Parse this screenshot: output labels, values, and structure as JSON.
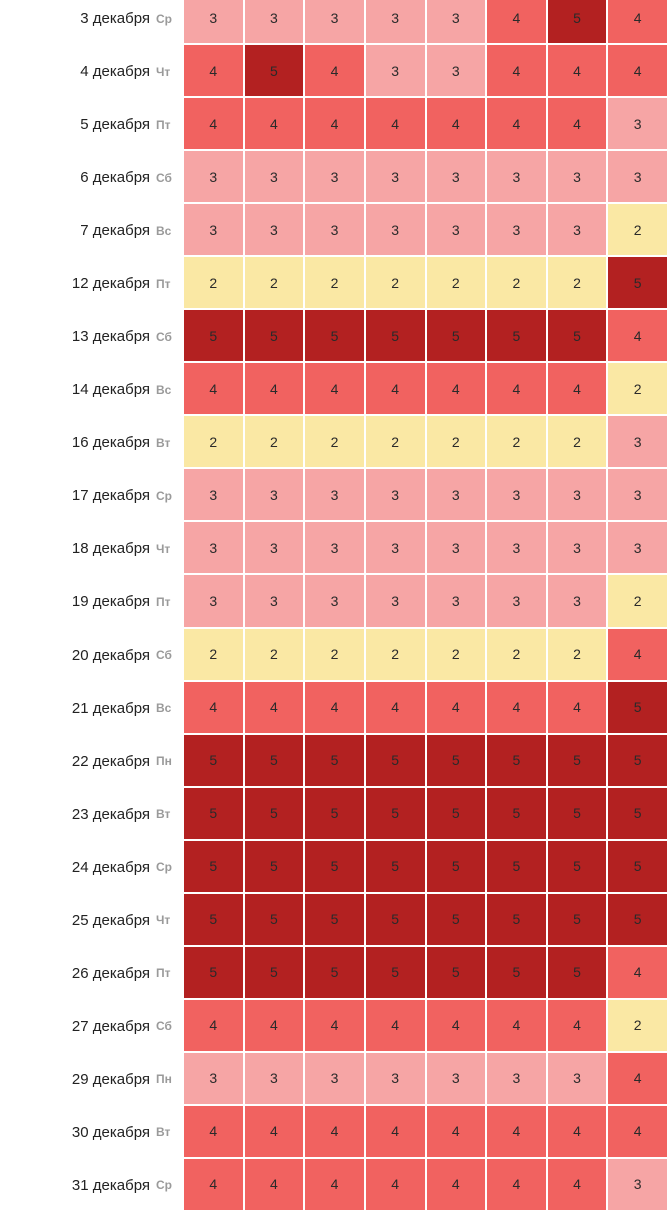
{
  "chart_data": {
    "type": "heatmap",
    "columns": 8,
    "colors": {
      "2": "#fae8a4",
      "3": "#f6a5a5",
      "4": "#f16260",
      "5": "#b32121"
    },
    "rows": [
      {
        "date": "3 декабря",
        "day": "Ср",
        "values": [
          3,
          3,
          3,
          3,
          3,
          4,
          5,
          4
        ]
      },
      {
        "date": "4 декабря",
        "day": "Чт",
        "values": [
          4,
          5,
          4,
          3,
          3,
          4,
          4,
          4
        ]
      },
      {
        "date": "5 декабря",
        "day": "Пт",
        "values": [
          4,
          4,
          4,
          4,
          4,
          4,
          4,
          3
        ]
      },
      {
        "date": "6 декабря",
        "day": "Сб",
        "values": [
          3,
          3,
          3,
          3,
          3,
          3,
          3,
          3
        ]
      },
      {
        "date": "7 декабря",
        "day": "Вс",
        "values": [
          3,
          3,
          3,
          3,
          3,
          3,
          3,
          2
        ]
      },
      {
        "date": "12 декабря",
        "day": "Пт",
        "values": [
          2,
          2,
          2,
          2,
          2,
          2,
          2,
          5
        ]
      },
      {
        "date": "13 декабря",
        "day": "Сб",
        "values": [
          5,
          5,
          5,
          5,
          5,
          5,
          5,
          4
        ]
      },
      {
        "date": "14 декабря",
        "day": "Вс",
        "values": [
          4,
          4,
          4,
          4,
          4,
          4,
          4,
          2
        ]
      },
      {
        "date": "16 декабря",
        "day": "Вт",
        "values": [
          2,
          2,
          2,
          2,
          2,
          2,
          2,
          3
        ]
      },
      {
        "date": "17 декабря",
        "day": "Ср",
        "values": [
          3,
          3,
          3,
          3,
          3,
          3,
          3,
          3
        ]
      },
      {
        "date": "18 декабря",
        "day": "Чт",
        "values": [
          3,
          3,
          3,
          3,
          3,
          3,
          3,
          3
        ]
      },
      {
        "date": "19 декабря",
        "day": "Пт",
        "values": [
          3,
          3,
          3,
          3,
          3,
          3,
          3,
          2
        ]
      },
      {
        "date": "20 декабря",
        "day": "Сб",
        "values": [
          2,
          2,
          2,
          2,
          2,
          2,
          2,
          4
        ]
      },
      {
        "date": "21 декабря",
        "day": "Вс",
        "values": [
          4,
          4,
          4,
          4,
          4,
          4,
          4,
          5
        ]
      },
      {
        "date": "22 декабря",
        "day": "Пн",
        "values": [
          5,
          5,
          5,
          5,
          5,
          5,
          5,
          5
        ]
      },
      {
        "date": "23 декабря",
        "day": "Вт",
        "values": [
          5,
          5,
          5,
          5,
          5,
          5,
          5,
          5
        ]
      },
      {
        "date": "24 декабря",
        "day": "Ср",
        "values": [
          5,
          5,
          5,
          5,
          5,
          5,
          5,
          5
        ]
      },
      {
        "date": "25 декабря",
        "day": "Чт",
        "values": [
          5,
          5,
          5,
          5,
          5,
          5,
          5,
          5
        ]
      },
      {
        "date": "26 декабря",
        "day": "Пт",
        "values": [
          5,
          5,
          5,
          5,
          5,
          5,
          5,
          4
        ]
      },
      {
        "date": "27 декабря",
        "day": "Сб",
        "values": [
          4,
          4,
          4,
          4,
          4,
          4,
          4,
          2
        ]
      },
      {
        "date": "29 декабря",
        "day": "Пн",
        "values": [
          3,
          3,
          3,
          3,
          3,
          3,
          3,
          4
        ]
      },
      {
        "date": "30 декабря",
        "day": "Вт",
        "values": [
          4,
          4,
          4,
          4,
          4,
          4,
          4,
          4
        ]
      },
      {
        "date": "31 декабря",
        "day": "Ср",
        "values": [
          4,
          4,
          4,
          4,
          4,
          4,
          4,
          3
        ]
      }
    ]
  }
}
